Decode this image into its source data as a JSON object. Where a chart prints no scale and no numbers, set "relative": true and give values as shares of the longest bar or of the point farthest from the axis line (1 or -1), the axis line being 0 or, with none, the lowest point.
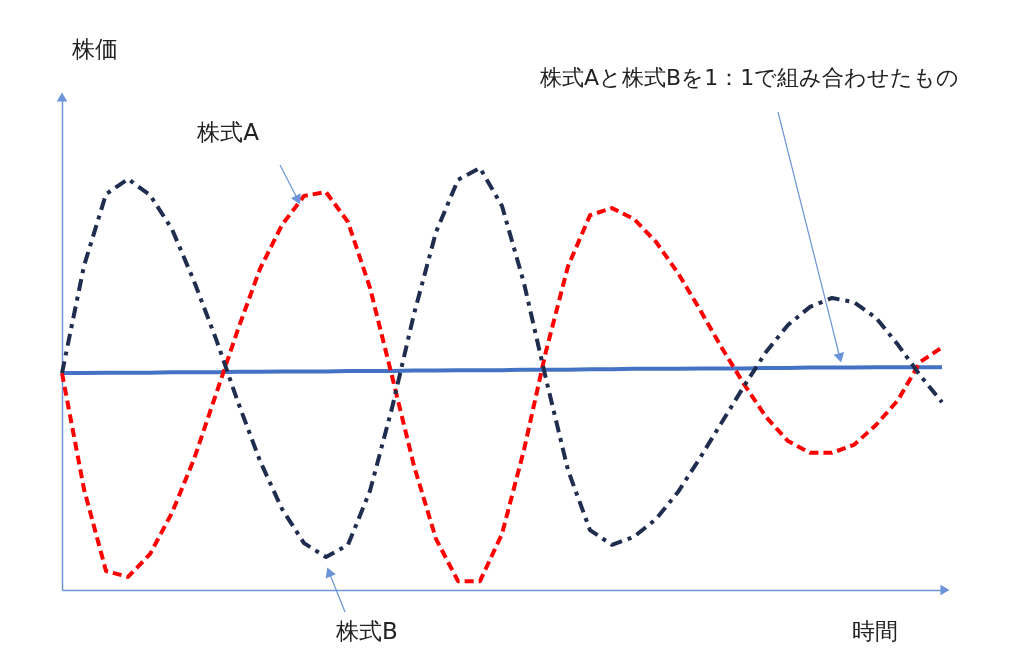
{
  "chart_data": {
    "type": "line",
    "relative": true,
    "ylabel": "株価",
    "xlabel": "時間",
    "grid": false,
    "annotations": [
      "株式Aと株式Bを1：1で組み合わせたもの",
      "株式A",
      "株式B"
    ],
    "categories": [
      null,
      null,
      null,
      null,
      null,
      null,
      null,
      null,
      null,
      null,
      null,
      null,
      null,
      null,
      null,
      null,
      null,
      null,
      null,
      null,
      null,
      null,
      null,
      null,
      null,
      null,
      null,
      null,
      null,
      null,
      null,
      null,
      null,
      null,
      null,
      null,
      null,
      null,
      null,
      null,
      null
    ],
    "series": [
      {
        "color": "#4472c4",
        "line_style": "solid",
        "values": [
          0.514,
          0.514,
          0.515,
          0.515,
          0.515,
          0.516,
          0.516,
          0.516,
          0.517,
          0.517,
          0.518,
          0.518,
          0.518,
          0.519,
          0.519,
          0.519,
          0.52,
          0.52,
          0.521,
          0.521,
          0.521,
          0.522,
          0.522,
          0.522,
          0.523,
          0.523,
          0.524,
          0.524,
          0.524,
          0.525,
          0.525,
          0.525,
          0.526,
          0.526,
          0.527,
          0.527,
          0.527,
          0.528,
          0.528,
          0.528,
          0.528
        ]
      },
      {
        "color": "#ff0000",
        "line_style": "dashed",
        "values": [
          0.514,
          0.239,
          0.045,
          0.031,
          0.085,
          0.183,
          0.31,
          0.464,
          0.618,
          0.761,
          0.865,
          0.934,
          0.943,
          0.872,
          0.716,
          0.507,
          0.294,
          0.121,
          0.021,
          0.021,
          0.133,
          0.332,
          0.566,
          0.767,
          0.888,
          0.905,
          0.879,
          0.825,
          0.751,
          0.664,
          0.573,
          0.488,
          0.41,
          0.353,
          0.325,
          0.325,
          0.344,
          0.391,
          0.45,
          0.54,
          0.575
        ]
      },
      {
        "color": "#1f2d4f",
        "line_style": "dashdot",
        "values": [
          0.514,
          0.768,
          0.938,
          0.974,
          0.936,
          0.855,
          0.732,
          0.595,
          0.445,
          0.306,
          0.192,
          0.111,
          0.078,
          0.107,
          0.235,
          0.431,
          0.654,
          0.848,
          0.972,
          1.0,
          0.91,
          0.727,
          0.5,
          0.284,
          0.142,
          0.107,
          0.126,
          0.168,
          0.232,
          0.313,
          0.398,
          0.483,
          0.564,
          0.628,
          0.671,
          0.692,
          0.682,
          0.645,
          0.581,
          0.509,
          0.445
        ]
      }
    ]
  }
}
